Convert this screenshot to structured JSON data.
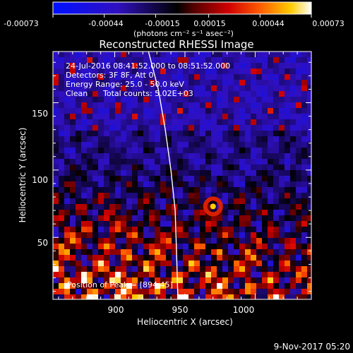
{
  "colorbar": {
    "ticks": [
      "-0.00073",
      "-0.00044",
      "-0.00015",
      "0.00015",
      "0.00044",
      "0.00073"
    ],
    "unit_label": "(photons cm⁻² s⁻¹ asec⁻²)",
    "range": [
      -0.00073,
      0.00073
    ]
  },
  "chart_data": {
    "type": "heatmap",
    "title": "Reconstructed RHESSI Image",
    "xlabel": "Heliocentric X (arcsec)",
    "ylabel": "Heliocentric Y (arcsec)",
    "xlim": [
      856,
      1040
    ],
    "ylim": [
      4,
      188
    ],
    "x_ticks": [
      900,
      950,
      1000
    ],
    "y_ticks": [
      50,
      100,
      150
    ],
    "annotations": [
      "24-Jul-2016 08:41:52.000 to 08:51:52.000",
      "Detectors: 3F 8F, Att 0",
      "Energy Range: 25.0 - 50.0 keV",
      "Clean",
      "Total counts: 5.02E+03"
    ],
    "peak_label": "Position of Peak = [894,45]",
    "peak_position": [
      894,
      45
    ],
    "limb_curve": [
      [
        924,
        188
      ],
      [
        931,
        160
      ],
      [
        936,
        130
      ],
      [
        940,
        100
      ],
      [
        943,
        70
      ],
      [
        944,
        40
      ],
      [
        945,
        4
      ]
    ]
  },
  "footer": {
    "timestamp": "9-Nov-2017 05:20"
  }
}
